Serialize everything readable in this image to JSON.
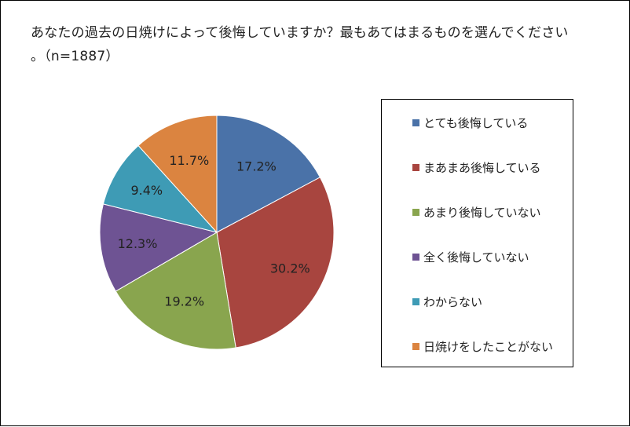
{
  "chart_data": {
    "type": "pie",
    "title": "あなたの過去の日焼けによって後悔していますか？最もあてはまるものを選んでください。（n=1887）",
    "title_lines": [
      "あなたの過去の日焼けによって後悔していますか？最もあてはまるものを選んでください",
      "。（n=1887）"
    ],
    "categories": [
      "とても後悔している",
      "まあまあ後悔している",
      "あまり後悔していない",
      "全く後悔していない",
      "わからない",
      "日焼けをしたことがない"
    ],
    "values": [
      17.2,
      30.2,
      19.2,
      12.3,
      9.4,
      11.7
    ],
    "value_labels": [
      "17.2%",
      "30.2%",
      "19.2%",
      "12.3%",
      "9.4%",
      "11.7%"
    ],
    "colors": [
      "#4A72A8",
      "#A8453F",
      "#89A54E",
      "#6E5393",
      "#3E9BB5",
      "#DB8440"
    ],
    "unit": "%",
    "legend_position": "right",
    "start_angle": "top",
    "direction": "clockwise"
  }
}
